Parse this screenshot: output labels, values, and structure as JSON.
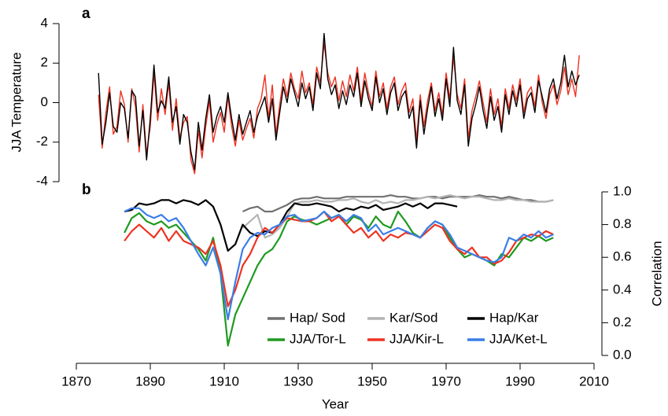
{
  "chart_data": [
    {
      "type": "line",
      "title": "a",
      "ylabel": "JJA Temperature",
      "x": [
        1876,
        1877,
        1878,
        1879,
        1880,
        1881,
        1882,
        1883,
        1884,
        1885,
        1886,
        1887,
        1888,
        1889,
        1890,
        1891,
        1892,
        1893,
        1894,
        1895,
        1896,
        1897,
        1898,
        1899,
        1900,
        1901,
        1902,
        1903,
        1904,
        1905,
        1906,
        1907,
        1908,
        1909,
        1910,
        1911,
        1912,
        1913,
        1914,
        1915,
        1916,
        1917,
        1918,
        1919,
        1920,
        1921,
        1922,
        1923,
        1924,
        1925,
        1926,
        1927,
        1928,
        1929,
        1930,
        1931,
        1932,
        1933,
        1934,
        1935,
        1936,
        1937,
        1938,
        1939,
        1940,
        1941,
        1942,
        1943,
        1944,
        1945,
        1946,
        1947,
        1948,
        1949,
        1950,
        1951,
        1952,
        1953,
        1954,
        1955,
        1956,
        1957,
        1958,
        1959,
        1960,
        1961,
        1962,
        1963,
        1964,
        1965,
        1966,
        1967,
        1968,
        1969,
        1970,
        1971,
        1972,
        1973,
        1974,
        1975,
        1976,
        1977,
        1978,
        1979,
        1980,
        1981,
        1982,
        1983,
        1984,
        1985,
        1986,
        1987,
        1988,
        1989,
        1990,
        1991,
        1992,
        1993,
        1994,
        1995,
        1996,
        1997,
        1998,
        1999,
        2000,
        2001,
        2002,
        2003,
        2004,
        2005,
        2006
      ],
      "series": [
        {
          "color": "#ee3322",
          "values": [
            0.4,
            -2.3,
            -0.5,
            0.8,
            -1.6,
            -1.2,
            0.6,
            -0.1,
            -2.0,
            0.7,
            -0.2,
            -2.5,
            -0.1,
            -2.6,
            -1.2,
            1.5,
            -0.9,
            0.7,
            -0.6,
            1.0,
            -1.4,
            0.2,
            -1.8,
            -1.0,
            -0.7,
            -2.9,
            -3.6,
            -1.4,
            -2.8,
            -1.2,
            0.1,
            -2.0,
            -1.1,
            -0.5,
            -1.5,
            0.3,
            -1.2,
            -2.2,
            -0.9,
            -1.9,
            -1.3,
            -0.8,
            -1.8,
            -0.3,
            0.2,
            1.4,
            -0.8,
            0.9,
            -1.6,
            -0.1,
            1.2,
            0.3,
            1.5,
            0.7,
            0.2,
            1.6,
            0.5,
            1.0,
            -0.1,
            1.8,
            1.0,
            3.0,
            1.5,
            0.8,
            1.3,
            0.1,
            1.1,
            0.3,
            1.4,
            0.6,
            1.8,
            0.1,
            1.5,
            0.5,
            -0.2,
            1.6,
            0.3,
            1.0,
            -0.3,
            0.8,
            1.3,
            -0.1,
            0.6,
            1.0,
            -0.5,
            0.2,
            -1.9,
            0.4,
            -1.2,
            0.1,
            1.0,
            -0.4,
            0.5,
            -0.6,
            1.5,
            0.2,
            2.3,
            0.4,
            -0.3,
            1.2,
            -1.8,
            -0.4,
            0.3,
            1.1,
            0.0,
            -1.0,
            0.7,
            -0.6,
            0.2,
            -1.2,
            0.7,
            -0.3,
            0.9,
            0.1,
            1.2,
            -0.5,
            0.5,
            0.8,
            -0.2,
            1.4,
            0.0,
            -0.8,
            0.4,
            0.9,
            -0.1,
            0.6,
            1.8,
            0.4,
            1.2,
            0.3,
            2.4
          ]
        },
        {
          "color": "#000000",
          "values": [
            1.5,
            -2.1,
            -1.0,
            0.5,
            -1.2,
            -1.5,
            0.0,
            -0.3,
            -1.8,
            0.6,
            0.3,
            -2.2,
            -0.4,
            -2.9,
            -0.8,
            1.9,
            -0.5,
            0.1,
            -0.3,
            1.3,
            -1.0,
            -0.2,
            -2.1,
            -0.6,
            -1.0,
            -2.5,
            -3.4,
            -1.0,
            -2.4,
            -0.8,
            0.4,
            -1.5,
            -0.7,
            -0.2,
            -1.0,
            0.5,
            -0.8,
            -1.9,
            -0.6,
            -1.6,
            -1.0,
            -0.4,
            -1.5,
            -0.7,
            -0.2,
            0.3,
            -1.0,
            0.2,
            -1.9,
            -0.5,
            0.8,
            0.0,
            1.2,
            0.5,
            -0.2,
            1.0,
            0.2,
            0.8,
            -0.4,
            1.5,
            0.7,
            3.5,
            1.2,
            0.4,
            0.9,
            -0.3,
            0.6,
            -0.1,
            0.9,
            0.3,
            1.5,
            -0.2,
            1.1,
            0.2,
            -0.4,
            1.3,
            0.0,
            0.7,
            -0.6,
            0.5,
            1.0,
            -0.4,
            0.3,
            0.6,
            -0.8,
            -0.2,
            -2.3,
            0.1,
            -1.6,
            -0.3,
            0.8,
            -0.7,
            0.2,
            -0.9,
            1.2,
            -0.2,
            2.8,
            0.1,
            -0.6,
            0.9,
            -2.2,
            -0.8,
            -0.1,
            0.8,
            -0.4,
            -1.3,
            0.3,
            -0.9,
            -0.2,
            -1.5,
            0.4,
            -0.6,
            0.6,
            -0.2,
            0.9,
            -0.8,
            0.2,
            0.5,
            -0.5,
            1.1,
            0.3,
            -0.5,
            0.7,
            1.2,
            0.2,
            1.0,
            2.4,
            0.8,
            1.6,
            0.9,
            1.4
          ]
        }
      ],
      "xlim": [
        1870,
        2010
      ],
      "ylim": [
        -4,
        4
      ],
      "yticks": [
        4,
        2,
        0,
        -2,
        -4
      ]
    },
    {
      "type": "line",
      "title": "b",
      "xlabel": "Year",
      "ylabel": "Correlation",
      "yaxis_side": "right",
      "x": [
        1883,
        1885,
        1887,
        1889,
        1891,
        1893,
        1895,
        1897,
        1899,
        1901,
        1903,
        1905,
        1907,
        1909,
        1911,
        1913,
        1915,
        1917,
        1919,
        1921,
        1923,
        1925,
        1927,
        1929,
        1931,
        1933,
        1935,
        1937,
        1939,
        1941,
        1943,
        1945,
        1947,
        1949,
        1951,
        1953,
        1955,
        1957,
        1959,
        1961,
        1963,
        1965,
        1967,
        1969,
        1971,
        1973,
        1975,
        1977,
        1979,
        1981,
        1983,
        1985,
        1987,
        1989,
        1991,
        1993,
        1995,
        1997,
        1999,
        2001
      ],
      "series": [
        {
          "name": "Hap/ Sod",
          "color": "#707070",
          "values": [
            null,
            null,
            null,
            null,
            null,
            null,
            null,
            null,
            null,
            null,
            null,
            null,
            null,
            null,
            null,
            null,
            0.88,
            0.9,
            0.91,
            0.88,
            0.88,
            0.9,
            0.92,
            0.95,
            0.96,
            0.96,
            0.97,
            0.96,
            0.96,
            0.96,
            0.97,
            0.97,
            0.97,
            0.97,
            0.97,
            0.97,
            0.98,
            0.97,
            0.97,
            0.96,
            0.96,
            0.97,
            0.97,
            0.96,
            0.97,
            0.97,
            0.97,
            0.97,
            0.98,
            0.97,
            0.97,
            0.96,
            0.97,
            0.96,
            0.95,
            0.95,
            0.94,
            0.94,
            0.95,
            null
          ]
        },
        {
          "name": "Kar/Sod",
          "color": "#b4b4b4",
          "values": [
            null,
            null,
            null,
            null,
            null,
            null,
            null,
            null,
            null,
            null,
            null,
            null,
            null,
            null,
            null,
            null,
            0.78,
            0.82,
            0.86,
            0.72,
            0.74,
            0.78,
            0.85,
            0.93,
            0.94,
            0.94,
            0.95,
            0.94,
            0.94,
            0.95,
            0.95,
            0.96,
            0.94,
            0.93,
            0.95,
            0.93,
            0.94,
            0.93,
            0.95,
            0.95,
            0.96,
            0.97,
            0.96,
            0.97,
            0.98,
            0.97,
            0.96,
            0.97,
            0.97,
            0.96,
            0.95,
            0.95,
            0.96,
            0.95,
            0.95,
            0.94,
            0.94,
            0.94,
            0.95,
            null
          ]
        },
        {
          "name": "Hap/Kar",
          "color": "#000000",
          "values": [
            0.88,
            0.89,
            0.93,
            0.92,
            0.93,
            0.95,
            0.95,
            0.93,
            0.95,
            0.94,
            0.92,
            0.95,
            0.91,
            0.8,
            0.64,
            0.68,
            0.8,
            0.75,
            0.73,
            0.76,
            0.75,
            0.8,
            0.88,
            0.93,
            0.92,
            0.92,
            0.93,
            0.92,
            0.91,
            0.88,
            0.9,
            0.89,
            0.91,
            0.9,
            0.92,
            0.89,
            0.9,
            0.91,
            0.93,
            0.91,
            0.93,
            0.9,
            0.93,
            0.93,
            0.92,
            0.91,
            null,
            null,
            null,
            null,
            null,
            null,
            null,
            null,
            null,
            null,
            null,
            null,
            null,
            null
          ]
        },
        {
          "name": "JJA/Tor-L",
          "color": "#1f9a1f",
          "values": [
            0.75,
            0.84,
            0.87,
            0.82,
            0.8,
            0.82,
            0.78,
            0.8,
            0.75,
            0.7,
            0.65,
            0.58,
            0.72,
            0.5,
            0.06,
            0.25,
            0.35,
            0.45,
            0.55,
            0.62,
            0.65,
            0.72,
            0.82,
            0.85,
            0.83,
            0.82,
            0.8,
            0.82,
            0.84,
            0.86,
            0.8,
            0.85,
            0.83,
            0.78,
            0.85,
            0.8,
            0.78,
            0.88,
            0.82,
            0.75,
            0.72,
            0.78,
            0.82,
            0.8,
            0.72,
            0.65,
            0.6,
            0.62,
            0.6,
            0.58,
            0.55,
            0.62,
            0.6,
            0.66,
            0.72,
            0.7,
            0.73,
            0.7,
            0.72,
            null
          ]
        },
        {
          "name": "JJA/Kir-L",
          "color": "#ee3322",
          "values": [
            0.7,
            0.76,
            0.8,
            0.76,
            0.72,
            0.78,
            0.7,
            0.76,
            0.7,
            0.68,
            0.66,
            0.62,
            0.7,
            0.55,
            0.3,
            0.4,
            0.55,
            0.62,
            0.72,
            0.78,
            0.75,
            0.8,
            0.84,
            0.83,
            0.82,
            0.82,
            0.84,
            0.88,
            0.82,
            0.85,
            0.8,
            0.75,
            0.78,
            0.72,
            0.76,
            0.7,
            0.74,
            0.72,
            0.75,
            0.74,
            0.72,
            0.76,
            0.8,
            0.78,
            0.7,
            0.65,
            0.62,
            0.66,
            0.6,
            0.6,
            0.56,
            0.58,
            0.63,
            0.7,
            0.72,
            0.74,
            0.73,
            0.76,
            0.74,
            null
          ]
        },
        {
          "name": "JJA/Ket-L",
          "color": "#3a7ee8",
          "values": [
            0.88,
            0.9,
            0.9,
            0.86,
            0.84,
            0.86,
            0.82,
            0.84,
            0.78,
            0.7,
            0.62,
            0.55,
            0.66,
            0.5,
            0.22,
            0.45,
            0.65,
            0.72,
            0.75,
            0.74,
            0.78,
            0.8,
            0.85,
            0.86,
            0.82,
            0.83,
            0.84,
            0.88,
            0.84,
            0.86,
            0.82,
            0.86,
            0.84,
            0.76,
            0.8,
            0.74,
            0.76,
            0.78,
            0.76,
            0.74,
            0.72,
            0.78,
            0.82,
            0.8,
            0.74,
            0.66,
            0.64,
            0.62,
            0.6,
            0.58,
            0.57,
            0.6,
            0.72,
            0.7,
            0.74,
            0.72,
            0.76,
            0.72,
            0.74,
            null
          ]
        }
      ],
      "xlim": [
        1870,
        2010
      ],
      "xticks": [
        1870,
        1890,
        1910,
        1930,
        1950,
        1970,
        1990,
        2010
      ],
      "ylim": [
        0,
        1
      ],
      "yticks": [
        {
          "value": 1,
          "label": "1.0"
        },
        0.8,
        0.6,
        0.4,
        0.2,
        {
          "value": 0,
          "label": "0.0"
        }
      ]
    }
  ]
}
